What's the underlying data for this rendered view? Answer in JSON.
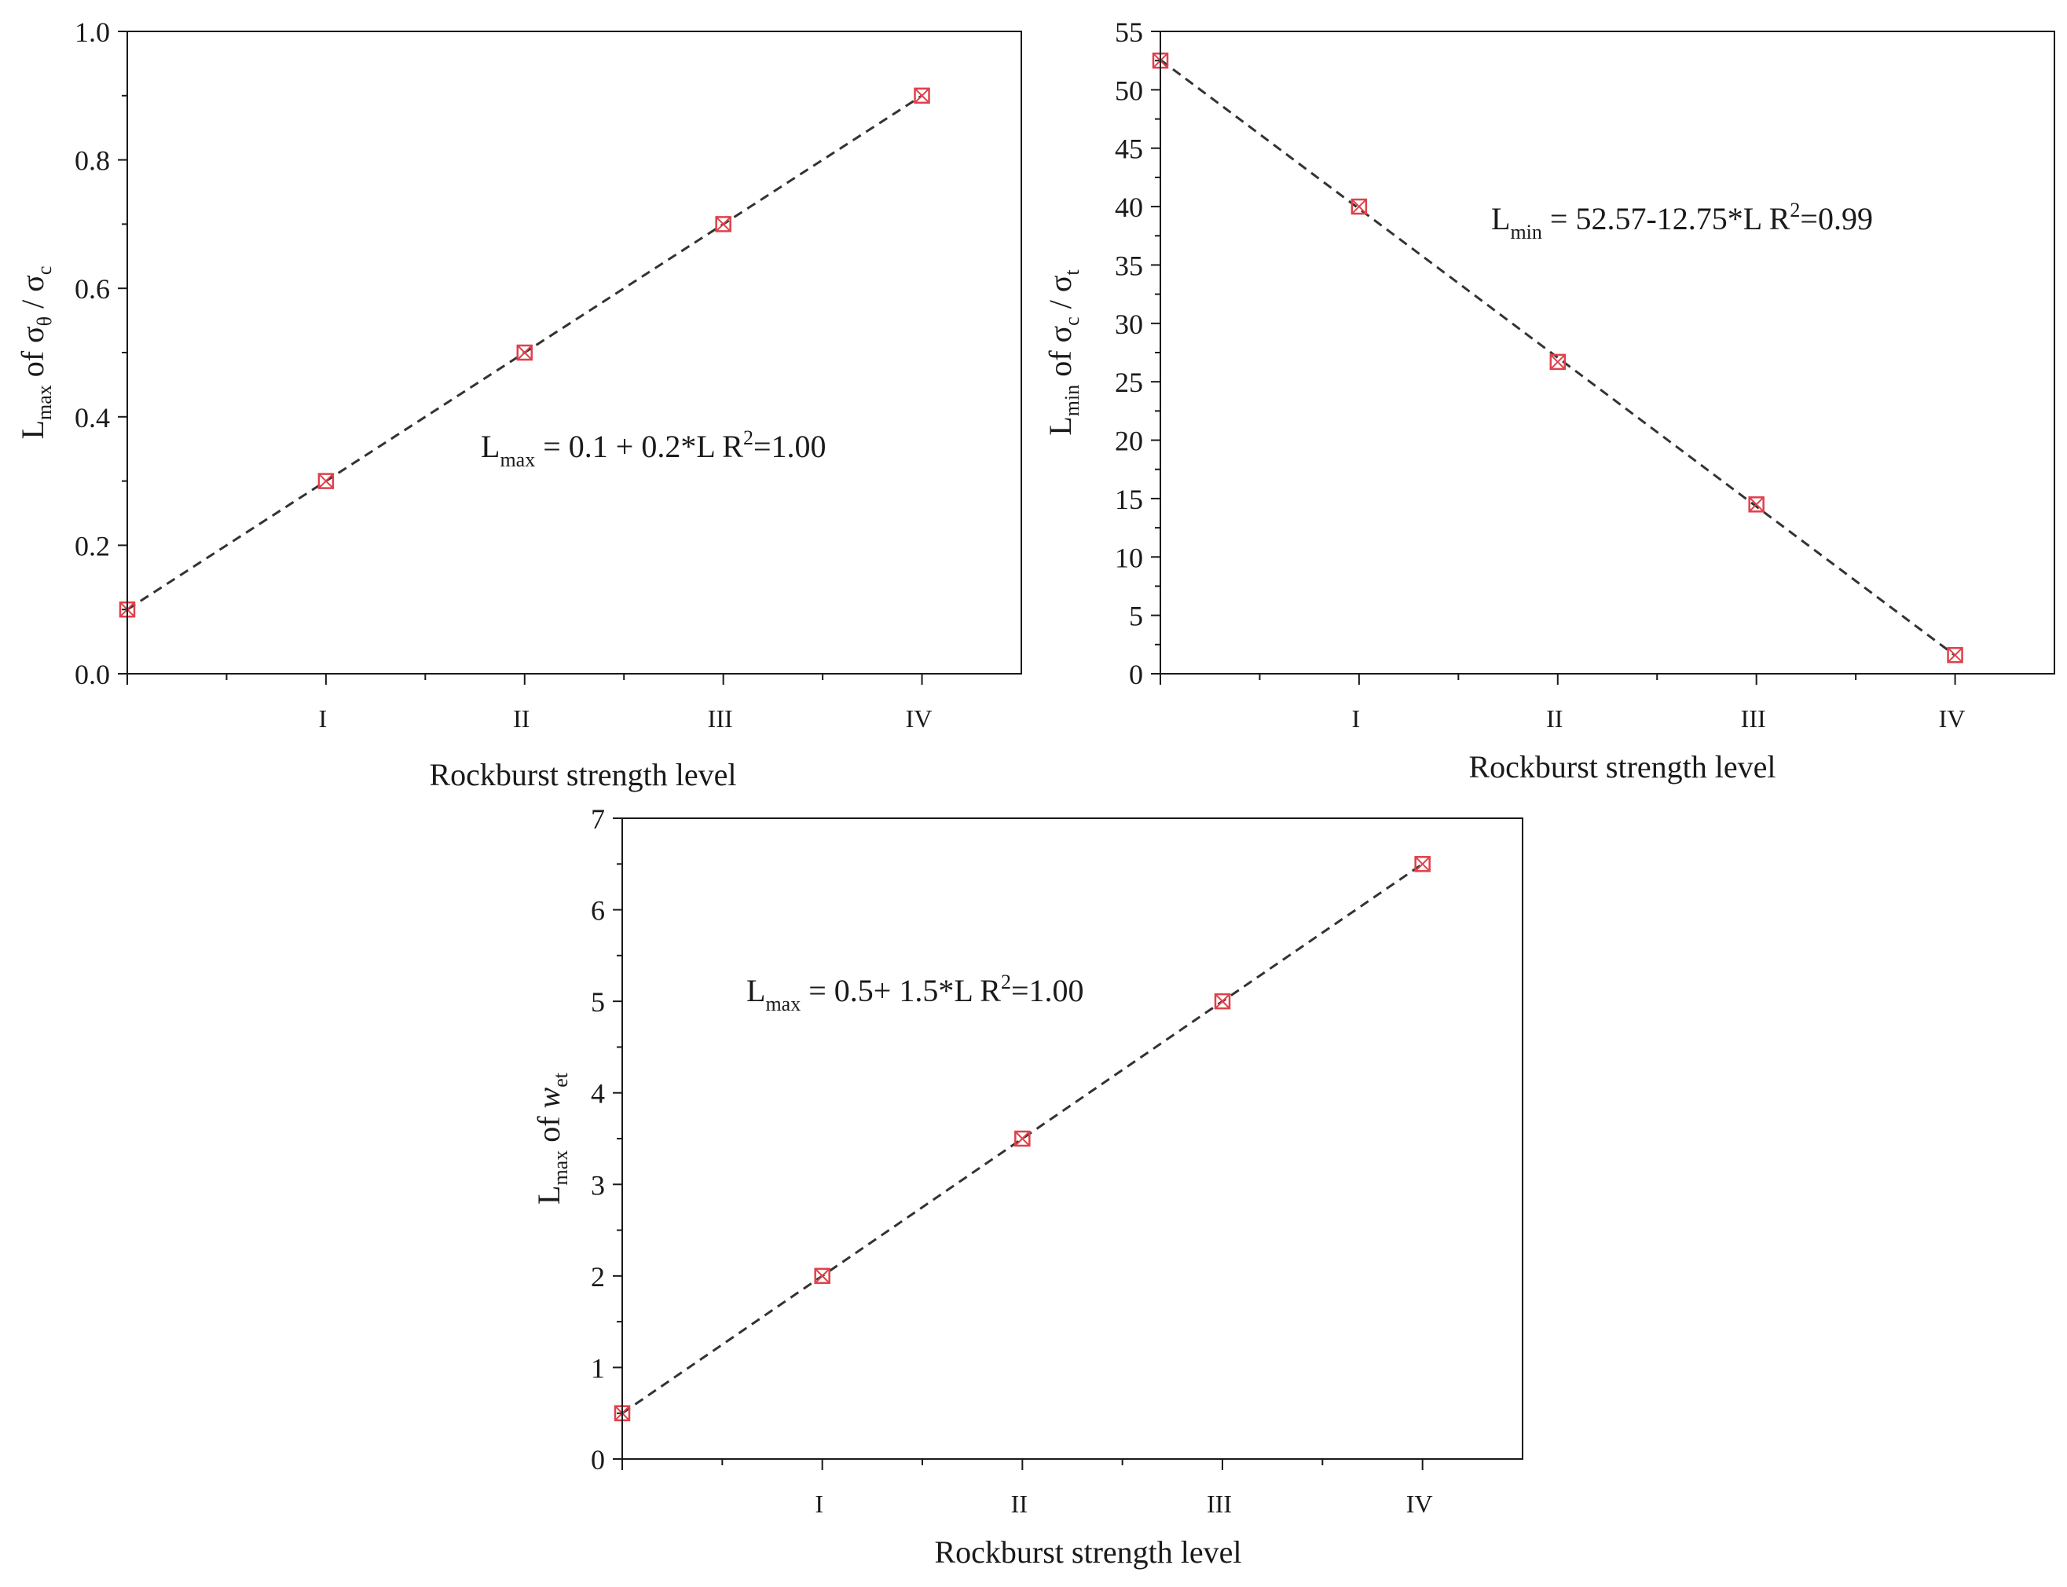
{
  "figure": {
    "colors": {
      "marker": "#e0404a",
      "fit_line": "#333333",
      "axis": "#1a1a1a",
      "background": "#ffffff"
    }
  },
  "chart_data": [
    {
      "id": "top-left",
      "type": "scatter",
      "x": [
        0,
        1,
        2,
        3,
        4
      ],
      "y": [
        0.1,
        0.3,
        0.5,
        0.7,
        0.9
      ],
      "xlim": [
        0,
        4.5
      ],
      "ylim": [
        0,
        1.0
      ],
      "xticks": [
        1,
        2,
        3,
        4
      ],
      "xtick_labels": [
        "I",
        "II",
        "III",
        "IV"
      ],
      "yticks": [
        0.0,
        0.2,
        0.4,
        0.6,
        0.8,
        1.0
      ],
      "ytick_labels": [
        "0.0",
        "0.2",
        "0.4",
        "0.6",
        "0.8",
        "1.0"
      ],
      "xlabel": "Rockburst strength level",
      "ylabel": {
        "main": "L",
        "sub1": "max",
        "mid": " of σ",
        "sub2": "θ",
        "end": " / σ",
        "sub3": "c"
      },
      "fit": {
        "intercept": 0.1,
        "slope": 0.2
      },
      "annotation": {
        "pre": "L",
        "sub": "max",
        "mid": " = 0.1 + 0.2*L   R",
        "sup": "2",
        "end": "=1.00"
      },
      "grid": false
    },
    {
      "id": "top-right",
      "type": "scatter",
      "x": [
        0,
        1,
        2,
        3,
        4
      ],
      "y": [
        52.5,
        40.0,
        26.7,
        14.5,
        1.6
      ],
      "xlim": [
        0,
        4.5
      ],
      "ylim": [
        0,
        55
      ],
      "xticks": [
        1,
        2,
        3,
        4
      ],
      "xtick_labels": [
        "I",
        "II",
        "III",
        "IV"
      ],
      "yticks": [
        0,
        5,
        10,
        15,
        20,
        25,
        30,
        35,
        40,
        45,
        50,
        55
      ],
      "ytick_labels": [
        "0",
        "5",
        "10",
        "15",
        "20",
        "25",
        "30",
        "35",
        "40",
        "45",
        "50",
        "55"
      ],
      "xlabel": "Rockburst strength level",
      "ylabel": {
        "main": "L",
        "sub1": "min",
        "mid": " of σ",
        "sub2": "c",
        "end": " / σ",
        "sub3": "t"
      },
      "fit": {
        "intercept": 52.57,
        "slope": -12.75
      },
      "annotation": {
        "pre": "L",
        "sub": "min",
        "mid": " = 52.57-12.75*L   R",
        "sup": "2",
        "end": "=0.99"
      },
      "grid": false
    },
    {
      "id": "bottom",
      "type": "scatter",
      "x": [
        0,
        1,
        2,
        3,
        4
      ],
      "y": [
        0.5,
        2.0,
        3.5,
        5.0,
        6.5
      ],
      "xlim": [
        0,
        4.5
      ],
      "ylim": [
        0,
        7
      ],
      "xticks": [
        1,
        2,
        3,
        4
      ],
      "xtick_labels": [
        "I",
        "II",
        "III",
        "IV"
      ],
      "yticks": [
        0,
        1,
        2,
        3,
        4,
        5,
        6,
        7
      ],
      "ytick_labels": [
        "0",
        "1",
        "2",
        "3",
        "4",
        "5",
        "6",
        "7"
      ],
      "xlabel": "Rockburst strength level",
      "ylabel": {
        "main": "L",
        "sub1": "max",
        "mid": " of ",
        "ital": "w",
        "sub2": "et"
      },
      "fit": {
        "intercept": 0.5,
        "slope": 1.5
      },
      "annotation": {
        "pre": "L",
        "sub": "max",
        "mid": " = 0.5+ 1.5*L   R",
        "sup": "2",
        "end": "=1.00"
      },
      "grid": false
    }
  ]
}
